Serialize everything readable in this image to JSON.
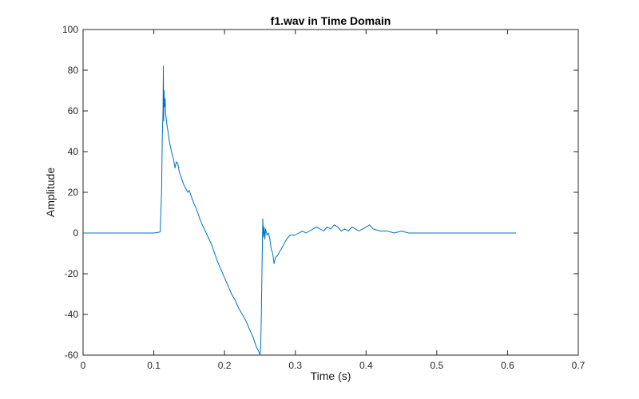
{
  "chart_data": {
    "type": "line",
    "title": "f1.wav in Time Domain",
    "xlabel": "Time (s)",
    "ylabel": "Amplitude",
    "xlim": [
      0,
      0.7
    ],
    "ylim": [
      -60,
      100
    ],
    "xticks": [
      0,
      0.1,
      0.2,
      0.3,
      0.4,
      0.5,
      0.6,
      0.7
    ],
    "xtick_labels": [
      "0",
      "0.1",
      "0.2",
      "0.3",
      "0.4",
      "0.5",
      "0.6",
      "0.7"
    ],
    "yticks": [
      -60,
      -40,
      -20,
      0,
      20,
      40,
      60,
      80,
      100
    ],
    "ytick_labels": [
      "-60",
      "-40",
      "-20",
      "0",
      "20",
      "40",
      "60",
      "80",
      "100"
    ],
    "grid": false,
    "line_color": "#0072bd",
    "series": [
      {
        "x": [
          0,
          0.05,
          0.1,
          0.109,
          0.111,
          0.112,
          0.113,
          0.1135,
          0.114,
          0.1145,
          0.115,
          0.116,
          0.117,
          0.118,
          0.119,
          0.12,
          0.122,
          0.125,
          0.128,
          0.13,
          0.132,
          0.134,
          0.136,
          0.138,
          0.14,
          0.142,
          0.145,
          0.148,
          0.15,
          0.153,
          0.156,
          0.16,
          0.163,
          0.166,
          0.17,
          0.174,
          0.178,
          0.182,
          0.186,
          0.19,
          0.195,
          0.2,
          0.205,
          0.21,
          0.215,
          0.22,
          0.225,
          0.23,
          0.235,
          0.24,
          0.245,
          0.248,
          0.25,
          0.251,
          0.252,
          0.253,
          0.254,
          0.255,
          0.256,
          0.257,
          0.258,
          0.26,
          0.262,
          0.264,
          0.266,
          0.268,
          0.27,
          0.272,
          0.275,
          0.278,
          0.28,
          0.283,
          0.286,
          0.29,
          0.293,
          0.296,
          0.3,
          0.305,
          0.31,
          0.315,
          0.32,
          0.325,
          0.33,
          0.335,
          0.34,
          0.345,
          0.35,
          0.355,
          0.36,
          0.365,
          0.37,
          0.375,
          0.38,
          0.385,
          0.39,
          0.395,
          0.4,
          0.405,
          0.41,
          0.42,
          0.43,
          0.44,
          0.45,
          0.46,
          0.47,
          0.48,
          0.5,
          0.52,
          0.54,
          0.56,
          0.58,
          0.6,
          0.612
        ],
        "y": [
          0,
          0,
          0,
          0.5,
          20,
          48,
          60,
          82,
          55,
          70,
          62,
          66,
          58,
          55,
          52,
          50,
          45,
          40,
          36,
          32,
          35,
          34,
          30,
          28,
          26,
          24,
          22,
          20,
          21,
          18,
          15,
          12,
          9,
          6,
          3,
          0,
          -3,
          -6,
          -10,
          -14,
          -18,
          -22,
          -26,
          -30,
          -33,
          -37,
          -40,
          -43,
          -47,
          -51,
          -56,
          -58,
          -60,
          -58,
          -40,
          -15,
          7,
          -2,
          3,
          -3,
          2,
          -1,
          0,
          -3,
          -8,
          -10,
          -15,
          -12,
          -11,
          -9,
          -8,
          -6,
          -4,
          -2,
          -1,
          -1,
          -1,
          0,
          1,
          0,
          1,
          2,
          3,
          2,
          1,
          3,
          2,
          4,
          3,
          1,
          2,
          1,
          3,
          2,
          1,
          2,
          3,
          4,
          2,
          1,
          1,
          0,
          1,
          0,
          0,
          0,
          0,
          0,
          0,
          0,
          0,
          0,
          0
        ]
      }
    ]
  }
}
